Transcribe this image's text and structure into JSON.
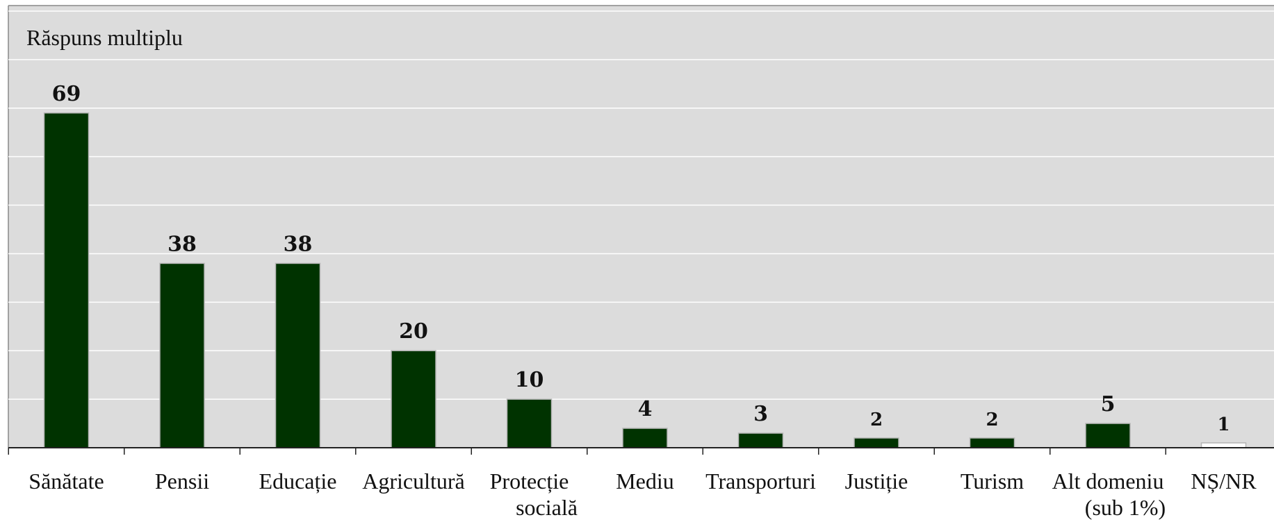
{
  "chart_data": {
    "type": "bar",
    "title": "",
    "annotation": "Răspuns multiplu",
    "xlabel": "",
    "ylabel": "",
    "categories": [
      "Sănătate",
      "Pensii",
      "Educație",
      "Agricultură",
      "Protecție socială",
      "Mediu",
      "Transporturi",
      "Justiție",
      "Turism",
      "Alt domeniu (sub 1%)",
      "NȘ/NR"
    ],
    "category_lines": [
      [
        "Sănătate"
      ],
      [
        "Pensii"
      ],
      [
        "Educație"
      ],
      [
        "Agricultură"
      ],
      [
        "Protecție",
        "socială"
      ],
      [
        "Mediu"
      ],
      [
        "Transporturi"
      ],
      [
        "Justiție"
      ],
      [
        "Turism"
      ],
      [
        "Alt domeniu",
        "(sub 1%)"
      ],
      [
        "NȘ/NR"
      ]
    ],
    "values": [
      69,
      38,
      38,
      20,
      10,
      4,
      3,
      2,
      2,
      5,
      1
    ],
    "value_labels": [
      "69",
      "38",
      "38",
      "20",
      "10",
      "4",
      "3",
      "2",
      "2",
      "5",
      "1"
    ],
    "bar_colors": [
      "#003300",
      "#003300",
      "#003300",
      "#003300",
      "#003300",
      "#003300",
      "#003300",
      "#003300",
      "#003300",
      "#003300",
      "#ffffff"
    ],
    "plot_background": "#dcdcdc",
    "gridline_color": "#ffffff",
    "grid": true,
    "ylim": [
      0,
      90
    ],
    "gridlines_every": 10,
    "legend": "none"
  }
}
